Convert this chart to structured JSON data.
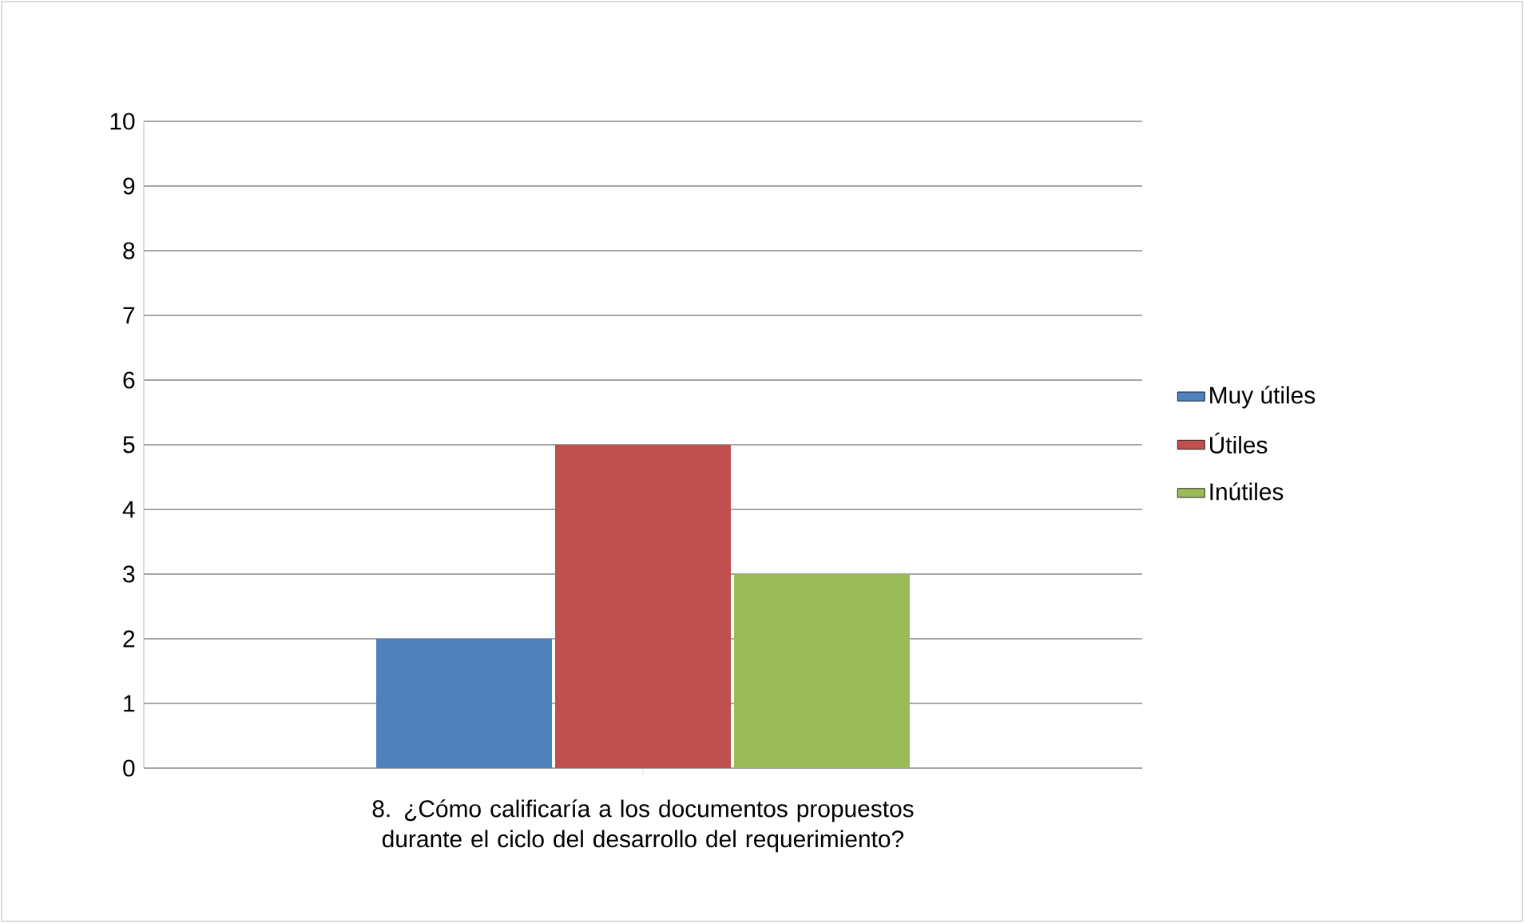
{
  "chart_data": {
    "type": "bar",
    "xlabel": "8. ¿Cómo calificaría a los documentos propuestos durante el ciclo del desarrollo del requerimiento?",
    "categories": [
      null
    ],
    "series": [
      {
        "name": "Muy útiles",
        "color": "#4f81bd",
        "values": [
          2
        ]
      },
      {
        "name": "Útiles",
        "color": "#c0504d",
        "values": [
          5
        ]
      },
      {
        "name": "Inútiles",
        "color": "#9bbb59",
        "values": [
          3
        ]
      }
    ],
    "ylim": [
      0,
      10
    ],
    "yticks": [
      0,
      1,
      2,
      3,
      4,
      5,
      6,
      7,
      8,
      9,
      10
    ],
    "grid": "y",
    "legend": "right"
  }
}
